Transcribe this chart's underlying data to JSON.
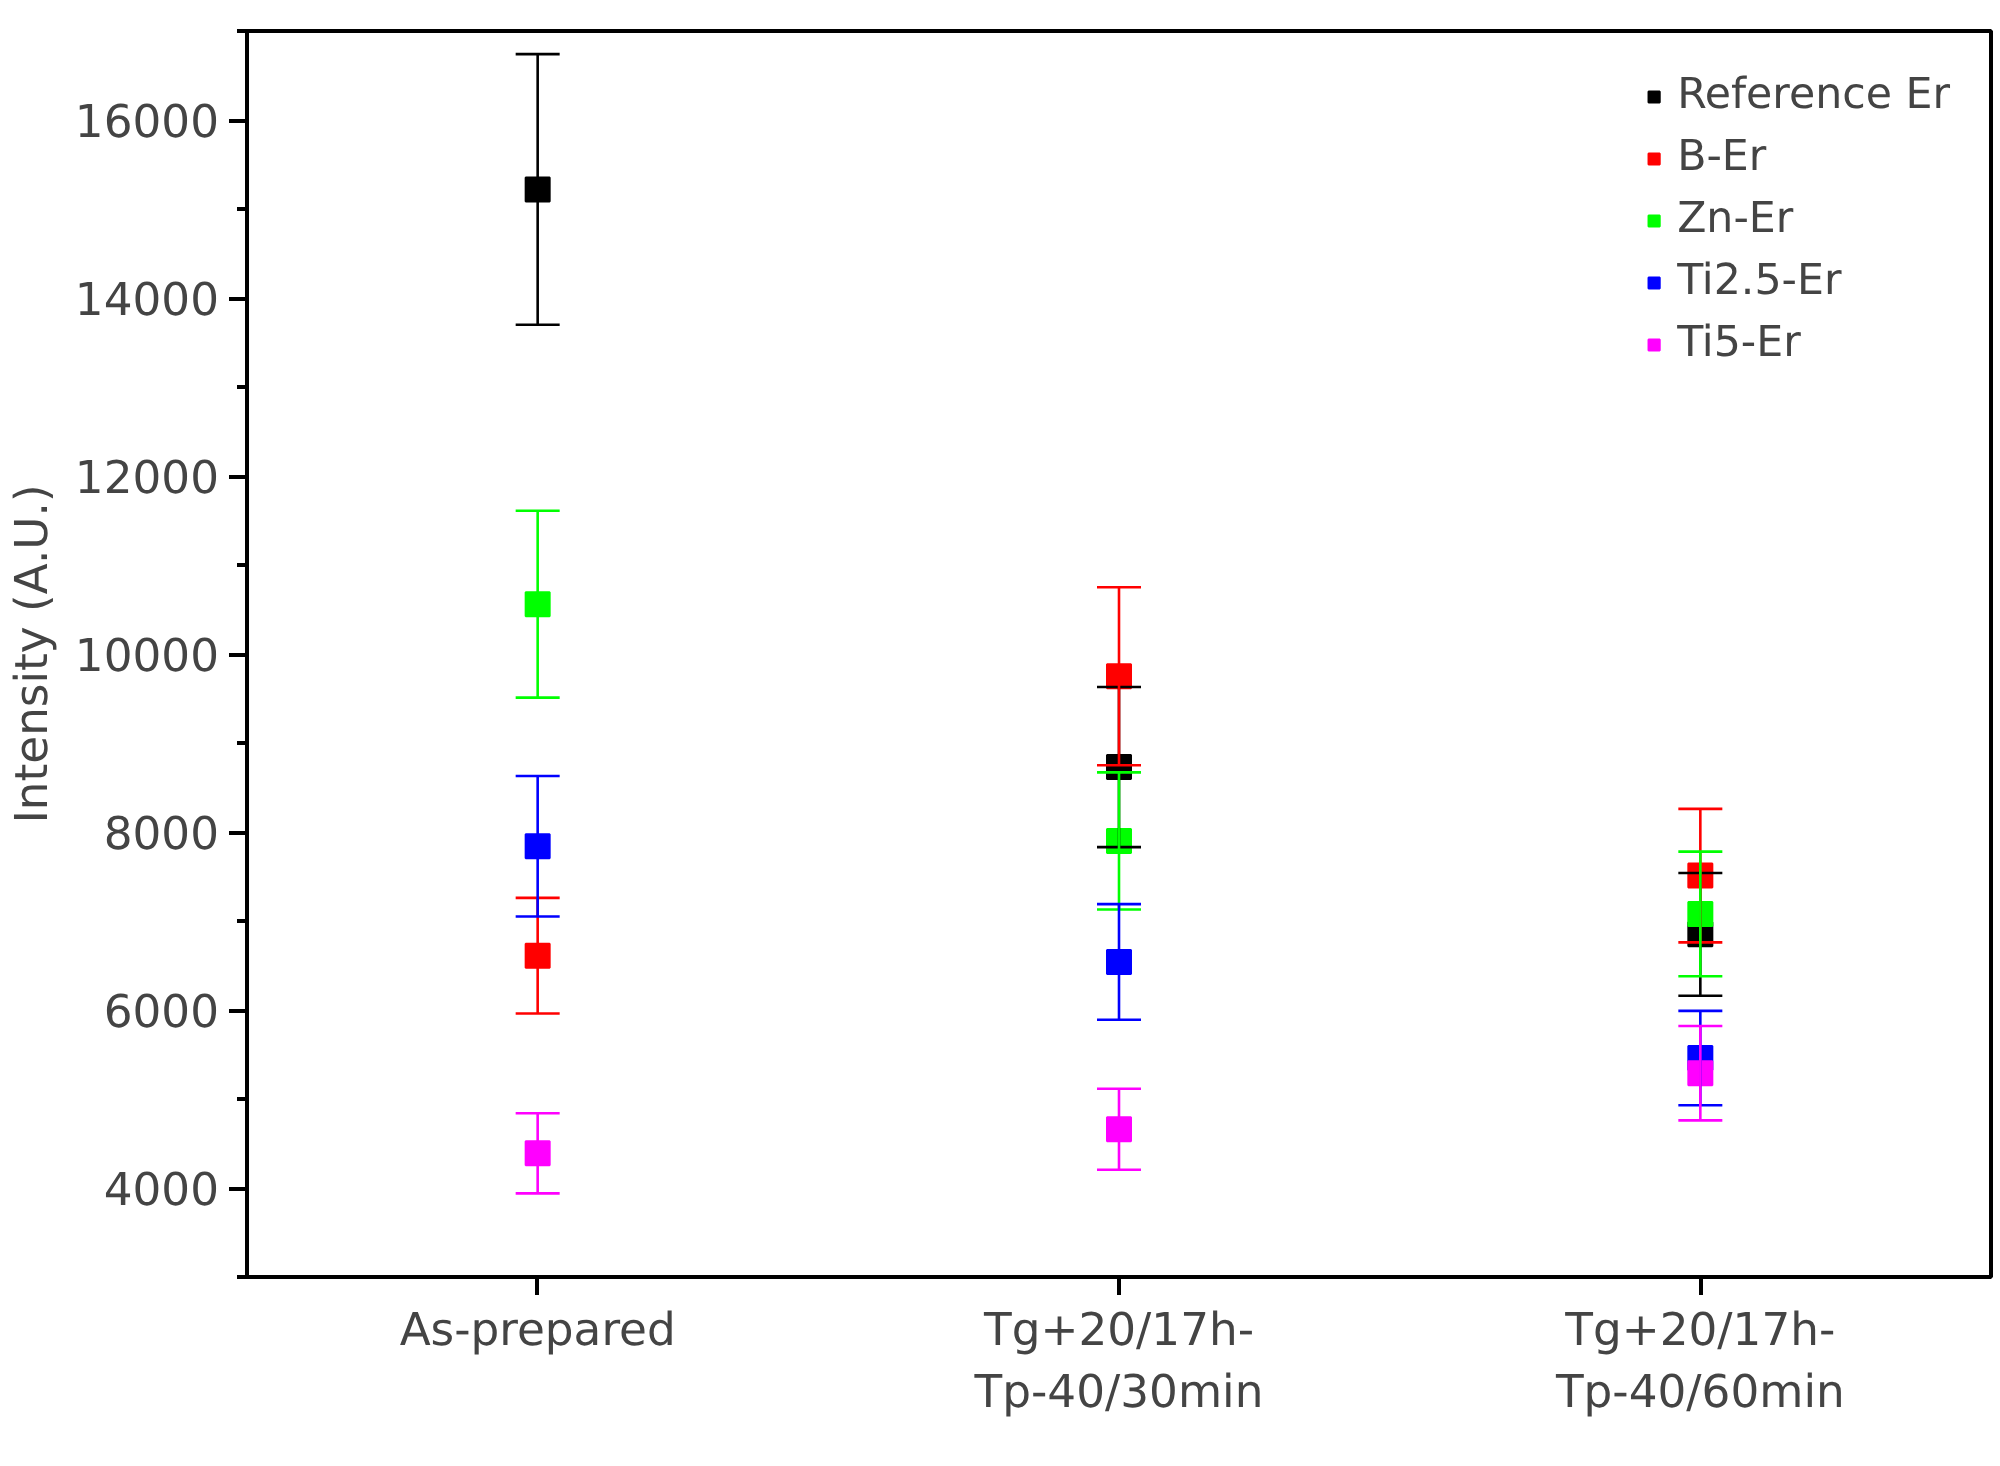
{
  "chart_data": {
    "type": "scatter",
    "ylabel": "Intensity (A.U.)",
    "categories": [
      "As-prepared",
      "Tg+20/17h-\nTp-40/30min",
      "Tg+20/17h-\nTp-40/60min"
    ],
    "series": [
      {
        "name": "Reference Er",
        "color": "#000000",
        "values": [
          15220,
          8730,
          6850
        ],
        "errors": [
          1520,
          900,
          690
        ]
      },
      {
        "name": "B-Er",
        "color": "#ff0000",
        "values": [
          6610,
          9750,
          7510
        ],
        "errors": [
          650,
          1000,
          750
        ]
      },
      {
        "name": "Zn-Er",
        "color": "#00ff00",
        "values": [
          10560,
          7900,
          7080
        ],
        "errors": [
          1050,
          770,
          700
        ]
      },
      {
        "name": "Ti2.5-Er",
        "color": "#0000ff",
        "values": [
          7840,
          6540,
          5460
        ],
        "errors": [
          790,
          650,
          530
        ]
      },
      {
        "name": "Ti5-Er",
        "color": "#ff00ff",
        "values": [
          4390,
          4660,
          5290
        ],
        "errors": [
          450,
          455,
          530
        ]
      }
    ],
    "ylim": [
      3000,
      17000
    ],
    "yticks": [
      4000,
      6000,
      8000,
      10000,
      12000,
      14000,
      16000
    ],
    "marker": "square",
    "legend": "top right",
    "grid": false
  }
}
